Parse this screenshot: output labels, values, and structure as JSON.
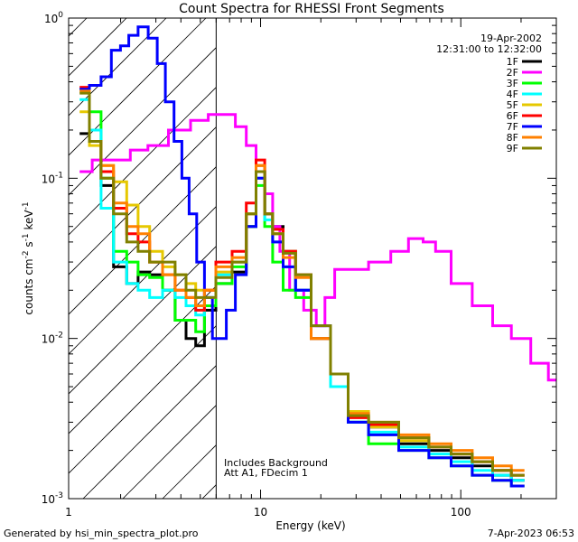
{
  "chart_data": {
    "type": "line",
    "title": "Count Spectra for RHESSI Front Segments",
    "xlabel": "Energy (keV)",
    "ylabel_parts": [
      "counts cm",
      "-2",
      " s",
      "-1",
      " keV",
      "-1"
    ],
    "x_scale": "log",
    "y_scale": "log",
    "xlim": [
      1.1,
      300
    ],
    "ylim": [
      0.001,
      1
    ],
    "x_ticks": [
      {
        "value": 10,
        "label": "10"
      },
      {
        "value": 100,
        "label": "100"
      }
    ],
    "y_ticks": [
      {
        "value": 1,
        "base": "10",
        "exp": "0"
      },
      {
        "value": 0.1,
        "base": "10",
        "exp": "-1"
      },
      {
        "value": 0.01,
        "base": "10",
        "exp": "-2"
      },
      {
        "value": 0.001,
        "base": "10",
        "exp": "-3"
      }
    ],
    "date": "19-Apr-2002",
    "time_range": "12:31:00 to 12:32:00",
    "annotations": [
      "Includes Background",
      "Att A1, FDecim 1"
    ],
    "hatched_region": [
      1.1,
      6
    ],
    "cutoff_line": 6,
    "legend_position": "top-right",
    "series": [
      {
        "name": "1F",
        "color": "#000000",
        "points": [
          [
            1.3,
            0.19
          ],
          [
            1.5,
            0.17
          ],
          [
            1.7,
            0.09
          ],
          [
            2.0,
            0.028
          ],
          [
            2.3,
            0.022
          ],
          [
            2.6,
            0.026
          ],
          [
            3.0,
            0.025
          ],
          [
            3.5,
            0.02
          ],
          [
            4.0,
            0.013
          ],
          [
            4.5,
            0.01
          ],
          [
            5.0,
            0.009
          ],
          [
            5.5,
            0.015
          ],
          [
            6.5,
            0.022
          ],
          [
            8.0,
            0.026
          ],
          [
            9.0,
            0.05
          ],
          [
            10.0,
            0.11
          ],
          [
            11.0,
            0.06
          ],
          [
            12.0,
            0.05
          ],
          [
            14.0,
            0.035
          ],
          [
            16.0,
            0.02
          ],
          [
            20.0,
            0.01
          ],
          [
            25.0,
            0.005
          ],
          [
            30.0,
            0.003
          ],
          [
            40.0,
            0.0028
          ],
          [
            60.0,
            0.0022
          ],
          [
            80.0,
            0.002
          ],
          [
            100.0,
            0.0018
          ],
          [
            130.0,
            0.0016
          ],
          [
            160.0,
            0.0014
          ],
          [
            200.0,
            0.0013
          ]
        ]
      },
      {
        "name": "2F",
        "color": "#ff00ff",
        "points": [
          [
            1.3,
            0.11
          ],
          [
            1.6,
            0.13
          ],
          [
            2.0,
            0.13
          ],
          [
            2.5,
            0.15
          ],
          [
            3.0,
            0.16
          ],
          [
            4.0,
            0.2
          ],
          [
            5.0,
            0.23
          ],
          [
            6.0,
            0.25
          ],
          [
            7.0,
            0.25
          ],
          [
            8.0,
            0.21
          ],
          [
            9.0,
            0.16
          ],
          [
            10.0,
            0.12
          ],
          [
            11.0,
            0.08
          ],
          [
            12.0,
            0.05
          ],
          [
            13.0,
            0.035
          ],
          [
            15.0,
            0.02
          ],
          [
            18.0,
            0.015
          ],
          [
            20.0,
            0.012
          ],
          [
            22.0,
            0.018
          ],
          [
            25.0,
            0.027
          ],
          [
            30.0,
            0.027
          ],
          [
            40.0,
            0.03
          ],
          [
            50.0,
            0.035
          ],
          [
            60.0,
            0.042
          ],
          [
            70.0,
            0.04
          ],
          [
            80.0,
            0.035
          ],
          [
            100.0,
            0.022
          ],
          [
            130.0,
            0.016
          ],
          [
            160.0,
            0.012
          ],
          [
            200.0,
            0.01
          ],
          [
            250.0,
            0.007
          ],
          [
            300.0,
            0.0055
          ]
        ]
      },
      {
        "name": "3F",
        "color": "#00ff00",
        "points": [
          [
            1.3,
            0.36
          ],
          [
            1.5,
            0.26
          ],
          [
            1.7,
            0.1
          ],
          [
            2.0,
            0.035
          ],
          [
            2.3,
            0.03
          ],
          [
            2.6,
            0.025
          ],
          [
            3.0,
            0.024
          ],
          [
            3.5,
            0.02
          ],
          [
            4.0,
            0.013
          ],
          [
            4.5,
            0.013
          ],
          [
            5.0,
            0.011
          ],
          [
            5.5,
            0.016
          ],
          [
            6.5,
            0.022
          ],
          [
            8.0,
            0.028
          ],
          [
            9.0,
            0.05
          ],
          [
            10.0,
            0.09
          ],
          [
            11.0,
            0.05
          ],
          [
            12.0,
            0.03
          ],
          [
            14.0,
            0.02
          ],
          [
            16.0,
            0.018
          ],
          [
            20.0,
            0.01
          ],
          [
            25.0,
            0.006
          ],
          [
            30.0,
            0.003
          ],
          [
            40.0,
            0.0022
          ],
          [
            60.0,
            0.002
          ],
          [
            80.0,
            0.0018
          ],
          [
            100.0,
            0.0016
          ],
          [
            130.0,
            0.0014
          ],
          [
            160.0,
            0.0013
          ],
          [
            200.0,
            0.0012
          ]
        ]
      },
      {
        "name": "4F",
        "color": "#00ffff",
        "points": [
          [
            1.3,
            0.31
          ],
          [
            1.5,
            0.2
          ],
          [
            1.7,
            0.065
          ],
          [
            2.0,
            0.03
          ],
          [
            2.3,
            0.022
          ],
          [
            2.6,
            0.02
          ],
          [
            3.0,
            0.018
          ],
          [
            3.5,
            0.02
          ],
          [
            4.0,
            0.018
          ],
          [
            4.5,
            0.016
          ],
          [
            5.0,
            0.014
          ],
          [
            5.5,
            0.018
          ],
          [
            6.5,
            0.025
          ],
          [
            8.0,
            0.03
          ],
          [
            9.0,
            0.06
          ],
          [
            10.0,
            0.1
          ],
          [
            11.0,
            0.055
          ],
          [
            12.0,
            0.04
          ],
          [
            14.0,
            0.028
          ],
          [
            16.0,
            0.02
          ],
          [
            20.0,
            0.01
          ],
          [
            25.0,
            0.005
          ],
          [
            30.0,
            0.003
          ],
          [
            40.0,
            0.0026
          ],
          [
            60.0,
            0.0021
          ],
          [
            80.0,
            0.0019
          ],
          [
            100.0,
            0.0017
          ],
          [
            130.0,
            0.0015
          ],
          [
            160.0,
            0.0014
          ],
          [
            200.0,
            0.0013
          ]
        ]
      },
      {
        "name": "5F",
        "color": "#e6c800",
        "points": [
          [
            1.3,
            0.26
          ],
          [
            1.5,
            0.16
          ],
          [
            1.7,
            0.12
          ],
          [
            2.0,
            0.095
          ],
          [
            2.3,
            0.068
          ],
          [
            2.6,
            0.05
          ],
          [
            3.0,
            0.035
          ],
          [
            3.5,
            0.028
          ],
          [
            4.0,
            0.025
          ],
          [
            4.5,
            0.022
          ],
          [
            5.0,
            0.02
          ],
          [
            5.5,
            0.02
          ],
          [
            6.5,
            0.026
          ],
          [
            8.0,
            0.03
          ],
          [
            9.0,
            0.06
          ],
          [
            10.0,
            0.12
          ],
          [
            11.0,
            0.06
          ],
          [
            12.0,
            0.045
          ],
          [
            14.0,
            0.035
          ],
          [
            16.0,
            0.025
          ],
          [
            20.0,
            0.01
          ],
          [
            25.0,
            0.006
          ],
          [
            30.0,
            0.0035
          ],
          [
            40.0,
            0.0028
          ],
          [
            60.0,
            0.0023
          ],
          [
            80.0,
            0.0021
          ],
          [
            100.0,
            0.0019
          ],
          [
            130.0,
            0.0017
          ],
          [
            160.0,
            0.0015
          ],
          [
            200.0,
            0.0014
          ]
        ]
      },
      {
        "name": "6F",
        "color": "#ff0000",
        "points": [
          [
            1.3,
            0.37
          ],
          [
            1.5,
            0.17
          ],
          [
            1.7,
            0.11
          ],
          [
            2.0,
            0.065
          ],
          [
            2.3,
            0.045
          ],
          [
            2.6,
            0.04
          ],
          [
            3.0,
            0.03
          ],
          [
            3.5,
            0.025
          ],
          [
            4.0,
            0.02
          ],
          [
            4.5,
            0.018
          ],
          [
            5.0,
            0.015
          ],
          [
            5.5,
            0.02
          ],
          [
            6.5,
            0.03
          ],
          [
            8.0,
            0.035
          ],
          [
            9.0,
            0.07
          ],
          [
            10.0,
            0.13
          ],
          [
            11.0,
            0.06
          ],
          [
            12.0,
            0.048
          ],
          [
            14.0,
            0.035
          ],
          [
            16.0,
            0.025
          ],
          [
            20.0,
            0.01
          ],
          [
            25.0,
            0.006
          ],
          [
            30.0,
            0.0032
          ],
          [
            40.0,
            0.0029
          ],
          [
            60.0,
            0.0024
          ],
          [
            80.0,
            0.0021
          ],
          [
            100.0,
            0.0019
          ],
          [
            130.0,
            0.0017
          ],
          [
            160.0,
            0.0015
          ],
          [
            200.0,
            0.0014
          ]
        ]
      },
      {
        "name": "7F",
        "color": "#0000ff",
        "points": [
          [
            1.3,
            0.36
          ],
          [
            1.5,
            0.38
          ],
          [
            1.7,
            0.43
          ],
          [
            1.9,
            0.63
          ],
          [
            2.1,
            0.67
          ],
          [
            2.3,
            0.78
          ],
          [
            2.6,
            0.88
          ],
          [
            2.9,
            0.75
          ],
          [
            3.2,
            0.52
          ],
          [
            3.5,
            0.3
          ],
          [
            3.9,
            0.17
          ],
          [
            4.2,
            0.1
          ],
          [
            4.6,
            0.06
          ],
          [
            5.0,
            0.03
          ],
          [
            5.5,
            0.018
          ],
          [
            6.0,
            0.01
          ],
          [
            6.5,
            0.01
          ],
          [
            7.0,
            0.015
          ],
          [
            8.0,
            0.025
          ],
          [
            9.0,
            0.05
          ],
          [
            10.0,
            0.1
          ],
          [
            11.0,
            0.06
          ],
          [
            12.0,
            0.04
          ],
          [
            14.0,
            0.028
          ],
          [
            16.0,
            0.02
          ],
          [
            20.0,
            0.012
          ],
          [
            25.0,
            0.006
          ],
          [
            30.0,
            0.003
          ],
          [
            40.0,
            0.0025
          ],
          [
            60.0,
            0.002
          ],
          [
            80.0,
            0.0018
          ],
          [
            100.0,
            0.0016
          ],
          [
            130.0,
            0.0014
          ],
          [
            160.0,
            0.0013
          ],
          [
            200.0,
            0.0012
          ]
        ]
      },
      {
        "name": "8F",
        "color": "#ff8000",
        "points": [
          [
            1.3,
            0.35
          ],
          [
            1.5,
            0.17
          ],
          [
            1.7,
            0.12
          ],
          [
            2.0,
            0.07
          ],
          [
            2.3,
            0.05
          ],
          [
            2.6,
            0.045
          ],
          [
            3.0,
            0.03
          ],
          [
            3.5,
            0.025
          ],
          [
            4.0,
            0.02
          ],
          [
            4.5,
            0.018
          ],
          [
            5.0,
            0.016
          ],
          [
            5.5,
            0.02
          ],
          [
            6.5,
            0.028
          ],
          [
            8.0,
            0.032
          ],
          [
            9.0,
            0.06
          ],
          [
            10.0,
            0.12
          ],
          [
            11.0,
            0.06
          ],
          [
            12.0,
            0.045
          ],
          [
            14.0,
            0.032
          ],
          [
            16.0,
            0.024
          ],
          [
            20.0,
            0.01
          ],
          [
            25.0,
            0.006
          ],
          [
            30.0,
            0.0034
          ],
          [
            40.0,
            0.003
          ],
          [
            60.0,
            0.0025
          ],
          [
            80.0,
            0.0022
          ],
          [
            100.0,
            0.002
          ],
          [
            130.0,
            0.0018
          ],
          [
            160.0,
            0.0016
          ],
          [
            200.0,
            0.0015
          ]
        ]
      },
      {
        "name": "9F",
        "color": "#808000",
        "points": [
          [
            1.3,
            0.34
          ],
          [
            1.5,
            0.17
          ],
          [
            1.7,
            0.1
          ],
          [
            2.0,
            0.06
          ],
          [
            2.3,
            0.04
          ],
          [
            2.6,
            0.035
          ],
          [
            3.0,
            0.03
          ],
          [
            3.5,
            0.03
          ],
          [
            4.0,
            0.025
          ],
          [
            4.5,
            0.02
          ],
          [
            5.0,
            0.018
          ],
          [
            5.5,
            0.018
          ],
          [
            6.5,
            0.024
          ],
          [
            8.0,
            0.03
          ],
          [
            9.0,
            0.06
          ],
          [
            10.0,
            0.11
          ],
          [
            11.0,
            0.06
          ],
          [
            12.0,
            0.045
          ],
          [
            14.0,
            0.034
          ],
          [
            16.0,
            0.025
          ],
          [
            20.0,
            0.012
          ],
          [
            25.0,
            0.006
          ],
          [
            30.0,
            0.0033
          ],
          [
            40.0,
            0.003
          ],
          [
            60.0,
            0.0024
          ],
          [
            80.0,
            0.0021
          ],
          [
            100.0,
            0.0019
          ],
          [
            130.0,
            0.0017
          ],
          [
            160.0,
            0.0015
          ],
          [
            200.0,
            0.0014
          ]
        ]
      }
    ]
  },
  "footer": {
    "left": "Generated by hsi_min_spectra_plot.pro",
    "right": "7-Apr-2023 06:53"
  }
}
